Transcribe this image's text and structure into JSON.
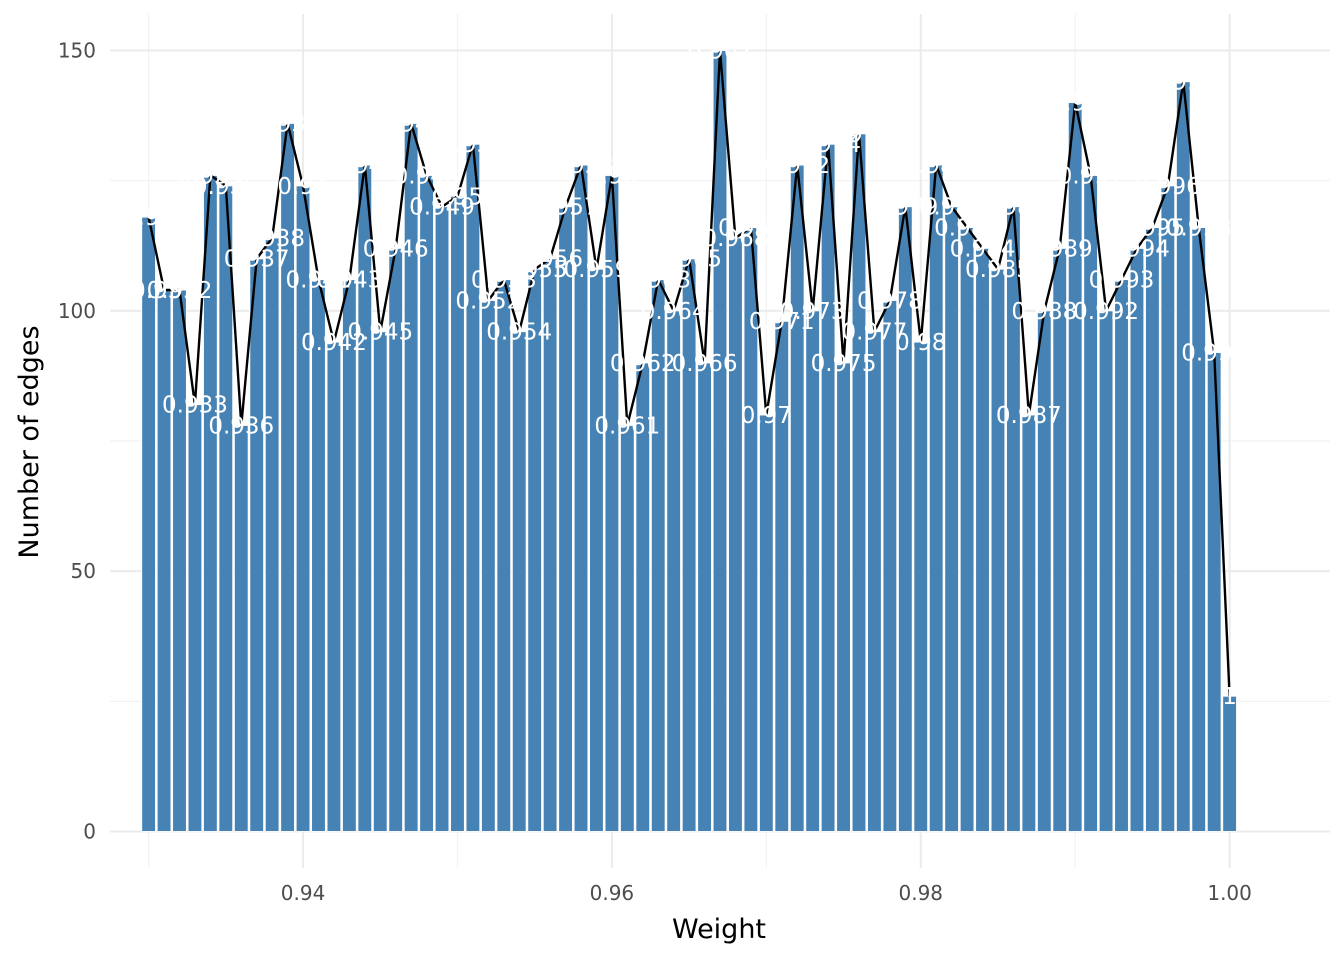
{
  "chart_data": {
    "type": "bar",
    "xlabel": "Weight",
    "ylabel": "Number of edges",
    "xlim": [
      0.9275,
      1.0065
    ],
    "ylim": [
      -7,
      157
    ],
    "x_ticks": [
      0.94,
      0.96,
      0.98,
      1.0
    ],
    "x_tick_labels": [
      "0.94",
      "0.96",
      "0.98",
      "1.00"
    ],
    "y_ticks": [
      0,
      50,
      100,
      150
    ],
    "y_tick_labels": [
      "0",
      "50",
      "100",
      "150"
    ],
    "grid": true,
    "legend": "none",
    "bar_color": "#4682b4",
    "line_color": "#000000",
    "x": [
      0.93,
      0.931,
      0.932,
      0.933,
      0.934,
      0.935,
      0.936,
      0.937,
      0.938,
      0.939,
      0.94,
      0.941,
      0.942,
      0.943,
      0.944,
      0.945,
      0.946,
      0.947,
      0.948,
      0.949,
      0.95,
      0.951,
      0.952,
      0.953,
      0.954,
      0.955,
      0.956,
      0.957,
      0.958,
      0.959,
      0.96,
      0.961,
      0.962,
      0.963,
      0.964,
      0.965,
      0.966,
      0.967,
      0.968,
      0.969,
      0.97,
      0.971,
      0.972,
      0.973,
      0.974,
      0.975,
      0.976,
      0.977,
      0.978,
      0.979,
      0.98,
      0.981,
      0.982,
      0.983,
      0.984,
      0.985,
      0.986,
      0.987,
      0.988,
      0.989,
      0.99,
      0.991,
      0.992,
      0.993,
      0.994,
      0.995,
      0.996,
      0.997,
      0.998,
      0.999,
      1.0
    ],
    "values": [
      118,
      104,
      104,
      82,
      126,
      124,
      78,
      110,
      114,
      136,
      124,
      106,
      94,
      106,
      128,
      96,
      112,
      136,
      126,
      120,
      122,
      132,
      102,
      106,
      96,
      108,
      110,
      120,
      128,
      108,
      126,
      78,
      90,
      106,
      100,
      110,
      90,
      150,
      114,
      116,
      80,
      98,
      128,
      100,
      132,
      90,
      134,
      96,
      102,
      120,
      94,
      128,
      120,
      116,
      112,
      108,
      120,
      80,
      100,
      112,
      140,
      126,
      100,
      106,
      112,
      116,
      124,
      144,
      116,
      92,
      26
    ],
    "labels": [
      "0.93",
      "0.931",
      "0.932",
      "0.933",
      "0.934",
      "0.935",
      "0.936",
      "0.937",
      "0.938",
      "0.939",
      "0.94",
      "0.941",
      "0.942",
      "0.943",
      "0.944",
      "0.945",
      "0.946",
      "0.947",
      "0.948",
      "0.949",
      "0.95",
      "0.951",
      "0.952",
      "0.953",
      "0.954",
      "0.955",
      "0.956",
      "0.957",
      "0.958",
      "0.959",
      "0.96",
      "0.961",
      "0.962",
      "0.963",
      "0.964",
      "0.965",
      "0.966",
      "0.967",
      "0.968",
      "0.969",
      "0.97",
      "0.971",
      "0.972",
      "0.973",
      "0.974",
      "0.975",
      "0.976",
      "0.977",
      "0.978",
      "0.979",
      "0.98",
      "0.981",
      "0.982",
      "0.983",
      "0.984",
      "0.985",
      "0.986",
      "0.987",
      "0.988",
      "0.989",
      "0.99",
      "0.991",
      "0.992",
      "0.993",
      "0.994",
      "0.995",
      "0.996",
      "0.997",
      "0.998",
      "0.999",
      "1"
    ]
  }
}
